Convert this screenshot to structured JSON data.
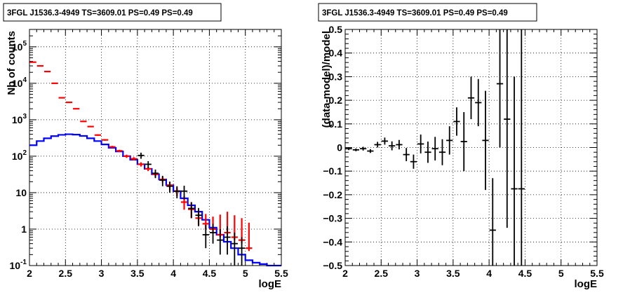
{
  "chart_data": [
    {
      "type": "line",
      "title": "3FGL J1536.3-4949 TS=3609.01 PS=0.49 PS=0.49",
      "xlabel": "logE",
      "ylabel": "Nb of counts",
      "xlim": [
        2,
        5.5
      ],
      "ylim": [
        0.1,
        300000
      ],
      "log_y": true,
      "grid": true,
      "xticks": [
        {
          "v": 2,
          "label": "2"
        },
        {
          "v": 2.5,
          "label": "2.5"
        },
        {
          "v": 3,
          "label": "3"
        },
        {
          "v": 3.5,
          "label": "3.5"
        },
        {
          "v": 4,
          "label": "4"
        },
        {
          "v": 4.5,
          "label": "4.5"
        },
        {
          "v": 5,
          "label": "5"
        },
        {
          "v": 5.5,
          "label": "5.5"
        }
      ],
      "yticks": [
        {
          "v": 0.1,
          "label": "10",
          "sup": "-1"
        },
        {
          "v": 1,
          "label": "1",
          "sup": ""
        },
        {
          "v": 10,
          "label": "10",
          "sup": ""
        },
        {
          "v": 100,
          "label": "10",
          "sup": "2"
        },
        {
          "v": 1000,
          "label": "10",
          "sup": "3"
        },
        {
          "v": 10000,
          "label": "10",
          "sup": "4"
        },
        {
          "v": 100000,
          "label": "10",
          "sup": "5"
        }
      ],
      "series": [
        {
          "role": "model",
          "color": "#0000ff",
          "bin_width": 0.1,
          "x": [
            2.05,
            2.15,
            2.25,
            2.35,
            2.45,
            2.55,
            2.65,
            2.75,
            2.85,
            2.95,
            3.05,
            3.15,
            3.25,
            3.35,
            3.45,
            3.55,
            3.65,
            3.75,
            3.85,
            3.95,
            4.05,
            4.15,
            4.25,
            4.35,
            4.45,
            4.55,
            4.65,
            4.75,
            4.85,
            4.95,
            5.05,
            5.15,
            5.25,
            5.35,
            5.45
          ],
          "values": [
            200,
            260,
            310,
            355,
            385,
            400,
            390,
            360,
            310,
            260,
            210,
            170,
            135,
            100,
            80,
            60,
            45,
            32,
            23,
            16,
            11,
            7,
            4.5,
            3,
            1.8,
            1.1,
            0.7,
            0.45,
            0.3,
            0.2,
            0.14,
            0.12,
            0.11,
            0.1,
            0.1
          ]
        },
        {
          "role": "counts",
          "color": "#ff0000",
          "x": [
            2.05,
            2.15,
            2.25,
            2.35,
            2.45,
            2.55,
            2.65,
            2.75,
            2.85,
            2.95,
            3.05,
            3.15,
            3.25,
            3.35,
            3.45,
            3.55,
            3.65,
            3.75,
            3.85,
            3.95,
            4.05,
            4.15,
            4.25,
            4.35,
            4.45,
            4.55,
            4.65,
            4.75,
            4.85,
            4.95,
            5.05
          ],
          "values": [
            38000,
            30000,
            21000,
            10000,
            4000,
            3000,
            2000,
            900,
            650,
            380,
            280,
            180,
            140,
            100,
            85,
            60,
            45,
            32,
            23,
            16,
            11,
            5.5,
            3.5,
            2,
            1.4,
            1,
            0.7,
            0.8,
            0.6,
            0.5,
            0.3
          ],
          "err_lo": [
            37500,
            29500,
            20500,
            9800,
            3900,
            2900,
            1950,
            870,
            625,
            360,
            265,
            168,
            130,
            90,
            76,
            52,
            39,
            27,
            19,
            12,
            8,
            3.4,
            2,
            1.3,
            1,
            0.8,
            0.6,
            0.7,
            0.5,
            0.4,
            0.25
          ],
          "err_hi": [
            38500,
            30500,
            21500,
            10200,
            4100,
            3100,
            2050,
            930,
            675,
            400,
            295,
            192,
            150,
            110,
            94,
            68,
            51,
            37,
            27,
            20,
            14,
            8,
            5.5,
            3.2,
            2.6,
            2.2,
            2.5,
            3,
            2.4,
            2,
            1.5
          ]
        },
        {
          "role": "data",
          "color": "#000000",
          "x": [
            3.55,
            3.65,
            3.75,
            3.85,
            3.95,
            4.05,
            4.15,
            4.25,
            4.35,
            4.45,
            4.55,
            4.65,
            4.75,
            4.85,
            4.95
          ],
          "values": [
            105,
            60,
            34,
            22,
            15,
            11,
            11,
            3.7,
            2.4,
            0.7,
            0.8,
            0.5,
            0.6,
            0.4,
            0.3
          ],
          "err_lo": [
            85,
            47,
            25,
            15,
            10,
            7,
            6.5,
            2,
            1.2,
            0.3,
            0.4,
            0.2,
            0.2,
            0.1,
            0.1
          ],
          "err_hi": [
            125,
            73,
            43,
            29,
            20,
            15,
            15.5,
            5.5,
            3.8,
            1.3,
            1.4,
            1,
            1.2,
            0.8,
            0.6
          ]
        }
      ]
    },
    {
      "type": "scatter",
      "title": "3FGL J1536.3-4949 TS=3609.01 PS=0.49 PS=0.49",
      "xlabel": "logE",
      "ylabel": "(data-model)/model",
      "xlim": [
        2,
        5.5
      ],
      "ylim": [
        -0.5,
        0.5
      ],
      "grid": true,
      "xticks": [
        {
          "v": 2,
          "label": "2"
        },
        {
          "v": 2.5,
          "label": "2.5"
        },
        {
          "v": 3,
          "label": "3"
        },
        {
          "v": 3.5,
          "label": "3.5"
        },
        {
          "v": 4,
          "label": "4"
        },
        {
          "v": 4.5,
          "label": "4.5"
        },
        {
          "v": 5,
          "label": "5"
        },
        {
          "v": 5.5,
          "label": "5.5"
        }
      ],
      "yticks": [
        {
          "v": -0.5,
          "label": "−0.5"
        },
        {
          "v": -0.4,
          "label": "−0.4"
        },
        {
          "v": -0.3,
          "label": "−0.3"
        },
        {
          "v": -0.2,
          "label": "−0.2"
        },
        {
          "v": -0.1,
          "label": "−0.1"
        },
        {
          "v": 0,
          "label": "0"
        },
        {
          "v": 0.1,
          "label": "0.1"
        },
        {
          "v": 0.2,
          "label": "0.2"
        },
        {
          "v": 0.3,
          "label": "0.3"
        },
        {
          "v": 0.4,
          "label": "0.4"
        },
        {
          "v": 0.5,
          "label": "0.5"
        }
      ],
      "series": [
        {
          "role": "residual",
          "color": "#000000",
          "x": [
            2.05,
            2.15,
            2.25,
            2.35,
            2.45,
            2.55,
            2.65,
            2.75,
            2.85,
            2.95,
            3.05,
            3.15,
            3.25,
            3.35,
            3.45,
            3.55,
            3.65,
            3.75,
            3.85,
            3.95,
            4.05,
            4.15,
            4.25,
            4.35,
            4.45
          ],
          "values": [
            -0.005,
            -0.01,
            -0.005,
            -0.015,
            0.012,
            0.027,
            0.007,
            0.012,
            -0.03,
            -0.06,
            0.015,
            -0.02,
            -0.005,
            -0.02,
            0.03,
            0.11,
            0.025,
            0.21,
            0.19,
            0.03,
            -0.35,
            0.27,
            0.12,
            -0.175,
            -0.175
          ],
          "err_lo": [
            -0.011,
            -0.016,
            -0.013,
            -0.023,
            0.0,
            0.012,
            -0.012,
            -0.008,
            -0.058,
            -0.09,
            -0.025,
            -0.065,
            -0.055,
            -0.075,
            -0.03,
            0.05,
            -0.1,
            0.12,
            0.09,
            -0.18,
            -0.5,
            0.0,
            -0.34,
            -0.5,
            -0.5
          ],
          "err_hi": [
            0.001,
            -0.004,
            0.003,
            -0.007,
            0.024,
            0.042,
            0.026,
            0.032,
            -0.002,
            -0.03,
            0.055,
            0.025,
            0.045,
            0.035,
            0.09,
            0.17,
            0.15,
            0.3,
            0.29,
            0.24,
            -0.13,
            0.5,
            0.5,
            0.3,
            0.5
          ]
        }
      ]
    }
  ]
}
